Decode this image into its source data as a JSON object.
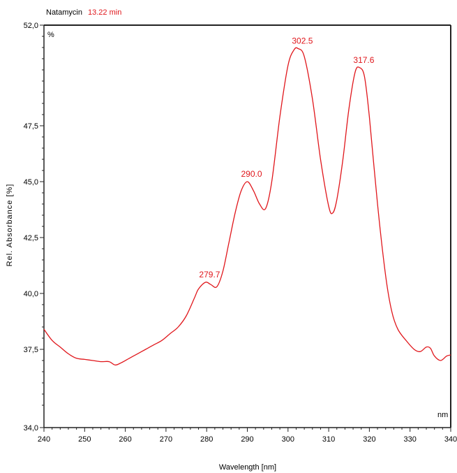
{
  "header": {
    "compound": "Natamycin",
    "retention": "13.22 min",
    "retention_color": "#e0161b"
  },
  "chart_data": {
    "type": "line",
    "title": "Natamycin 13.22 min",
    "xlabel": "Wavelength [nm]",
    "ylabel": "Rel. Absorbance [%]",
    "y_unit_corner": "%",
    "x_unit_corner": "nm",
    "xlim": [
      240,
      340
    ],
    "ylim": [
      34.0,
      52.0
    ],
    "x_ticks": [
      240,
      250,
      260,
      270,
      280,
      290,
      300,
      310,
      320,
      330,
      340
    ],
    "x_tick_labels": [
      "240",
      "250",
      "260",
      "270",
      "280",
      "290",
      "300",
      "310",
      "320",
      "330",
      "340"
    ],
    "y_ticks": [
      34.0,
      37.5,
      40.0,
      42.5,
      45.0,
      47.5,
      52.0
    ],
    "y_tick_labels": [
      "34,0",
      "37,5",
      "40,0",
      "42,5",
      "45,0",
      "47,5",
      "52,0"
    ],
    "grid": false,
    "line_color": "#e0161b",
    "series": [
      {
        "x": [
          240,
          242,
          244,
          246,
          248,
          250,
          252,
          254,
          256,
          257.5,
          259,
          261,
          263,
          265,
          267,
          269,
          271,
          273,
          275,
          277,
          278,
          279.7,
          281,
          282.5,
          284,
          285.5,
          287,
          288.5,
          290,
          291.5,
          293,
          294.5,
          296,
          298,
          300,
          301.5,
          302.5,
          304,
          306,
          308,
          310,
          311,
          312,
          313.5,
          315,
          316.5,
          317.6,
          318.8,
          320,
          322,
          324,
          325.5,
          327,
          329,
          331,
          332.5,
          334,
          335,
          336,
          337.5,
          339,
          340
        ],
        "y": [
          38.4,
          37.9,
          37.6,
          37.3,
          37.1,
          37.05,
          37.0,
          36.95,
          36.95,
          36.8,
          36.9,
          37.1,
          37.3,
          37.5,
          37.7,
          37.9,
          38.2,
          38.5,
          39.0,
          39.8,
          40.2,
          40.5,
          40.4,
          40.3,
          41.0,
          42.3,
          43.6,
          44.6,
          45.0,
          44.6,
          44.0,
          43.8,
          45.0,
          47.9,
          50.2,
          50.9,
          50.95,
          50.6,
          48.7,
          46.0,
          43.9,
          43.6,
          44.2,
          46.0,
          48.3,
          49.9,
          50.1,
          49.7,
          47.9,
          44.0,
          40.8,
          39.2,
          38.4,
          37.9,
          37.5,
          37.4,
          37.6,
          37.55,
          37.2,
          37.0,
          37.2,
          37.25
        ]
      }
    ],
    "annotations": [
      {
        "x": 279.7,
        "y": 40.5,
        "text": "279.7"
      },
      {
        "x": 290.0,
        "y": 45.0,
        "text": "290.0"
      },
      {
        "x": 302.5,
        "y": 50.95,
        "text": "302.5"
      },
      {
        "x": 317.6,
        "y": 50.1,
        "text": "317.6"
      }
    ]
  }
}
